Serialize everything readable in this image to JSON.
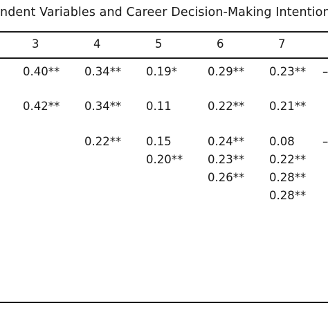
{
  "table": {
    "caption": "ndent Variables and Career Decision-Making Intention",
    "headers": [
      "3",
      "4",
      "5",
      "6",
      "7"
    ],
    "rows": [
      [
        "0.40**",
        "0.34**",
        "0.19*",
        "0.29**",
        "0.23**",
        "–"
      ],
      [
        "0.42**",
        "0.34**",
        "0.11",
        "0.22**",
        "0.21**"
      ],
      [
        "",
        "0.22**",
        "0.15",
        "0.24**",
        "0.08",
        "–"
      ],
      [
        "",
        "",
        "0.20**",
        "0.23**",
        "0.22**"
      ],
      [
        "",
        "",
        "",
        "0.26**",
        "0.28**"
      ],
      [
        "",
        "",
        "",
        "",
        "0.28**"
      ]
    ]
  }
}
